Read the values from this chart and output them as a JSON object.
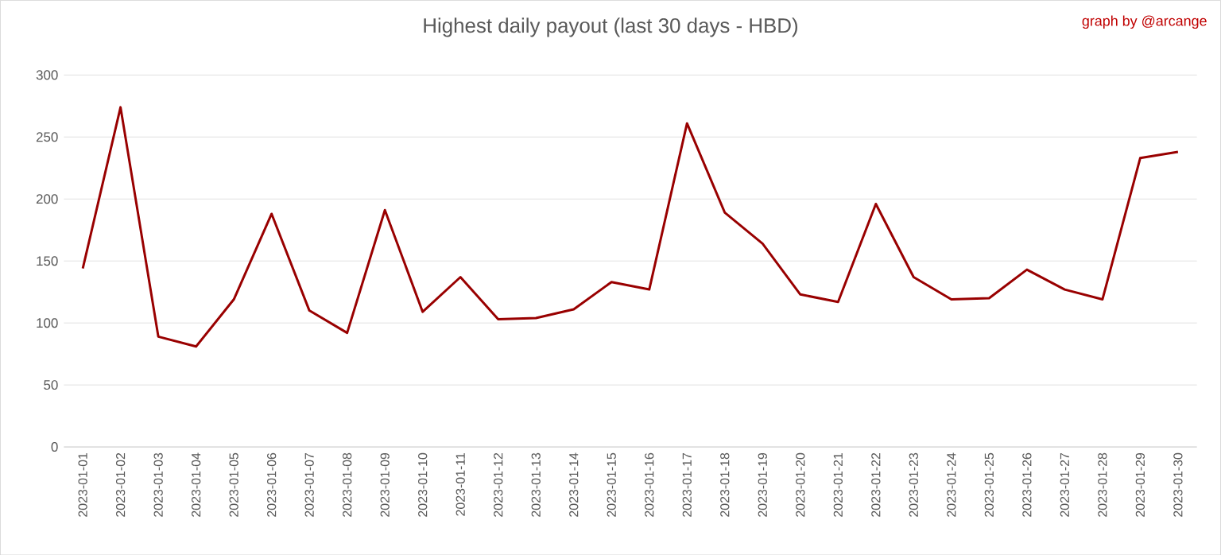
{
  "chart_data": {
    "type": "line",
    "title": "Highest daily payout (last 30 days - HBD)",
    "annotations": [
      "graph by @arcange"
    ],
    "categories": [
      "2023-01-01",
      "2023-01-02",
      "2023-01-03",
      "2023-01-04",
      "2023-01-05",
      "2023-01-06",
      "2023-01-07",
      "2023-01-08",
      "2023-01-09",
      "2023-01-10",
      "2023-01-11",
      "2023-01-12",
      "2023-01-13",
      "2023-01-14",
      "2023-01-15",
      "2023-01-16",
      "2023-01-17",
      "2023-01-18",
      "2023-01-19",
      "2023-01-20",
      "2023-01-21",
      "2023-01-22",
      "2023-01-23",
      "2023-01-24",
      "2023-01-25",
      "2023-01-26",
      "2023-01-27",
      "2023-01-28",
      "2023-01-29",
      "2023-01-30"
    ],
    "values": [
      144,
      274,
      89,
      81,
      119,
      188,
      110,
      92,
      191,
      109,
      137,
      103,
      104,
      111,
      133,
      127,
      261,
      189,
      164,
      123,
      117,
      196,
      137,
      119,
      120,
      143,
      127,
      119,
      233,
      238
    ],
    "color": "#990000",
    "ylim": [
      0,
      300
    ],
    "yticks": [
      0,
      50,
      100,
      150,
      200,
      250,
      300
    ],
    "grid": "y"
  }
}
